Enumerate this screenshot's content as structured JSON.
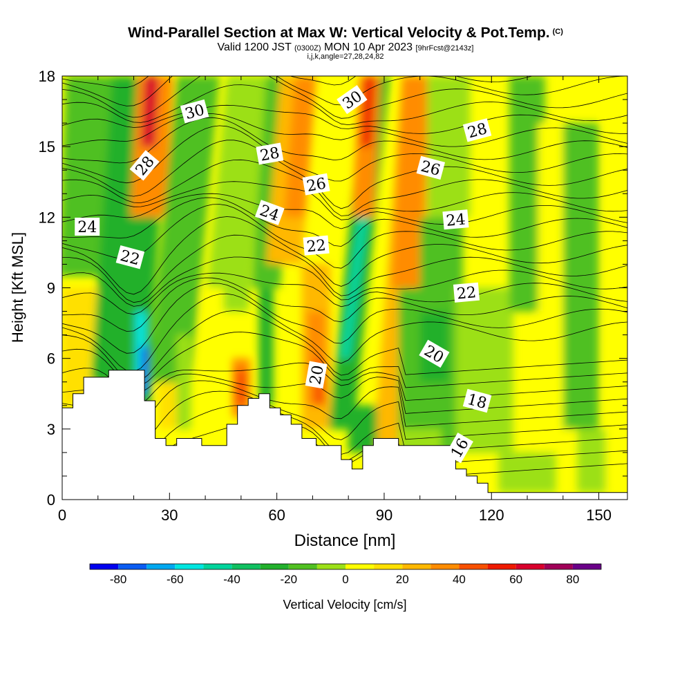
{
  "header": {
    "title": "Wind-Parallel Section at Max W: Vertical Velocity & Pot.Temp.",
    "copyright": "(C)",
    "valid_prefix": "Valid 1200 JST",
    "valid_utc": "(0300Z)",
    "valid_date": "MON 10 Apr 2023",
    "forecast": "[9hrFcst@2143z]",
    "indices": "i,j,k,angle=27,28,24,82"
  },
  "chart_data": {
    "type": "heatmap",
    "xlabel": "Distance [nm]",
    "ylabel": "Height [Kft MSL]",
    "xlim": [
      0,
      158
    ],
    "ylim": [
      0,
      18
    ],
    "x_ticks": [
      0,
      30,
      60,
      90,
      120,
      150
    ],
    "y_ticks": [
      0,
      3,
      6,
      9,
      12,
      15,
      18
    ],
    "colorbar": {
      "label": "Vertical Velocity [cm/s]",
      "ticks": [
        -80,
        -60,
        -40,
        -20,
        0,
        20,
        40,
        60,
        80
      ],
      "levels": [
        -90,
        -80,
        -70,
        -60,
        -50,
        -40,
        -30,
        -20,
        -10,
        0,
        10,
        20,
        30,
        40,
        50,
        60,
        70,
        80,
        90
      ],
      "colors": [
        "#0000ee",
        "#0a5cf2",
        "#00a8f0",
        "#00e6e0",
        "#00d49c",
        "#10c060",
        "#22b02c",
        "#50c020",
        "#9ce018",
        "#ffff00",
        "#ffe000",
        "#ffb800",
        "#ff8c00",
        "#f85000",
        "#ee1a00",
        "#d8002c",
        "#a00058",
        "#6a0088"
      ]
    },
    "contour_labels": [
      {
        "text": "30",
        "x": 37,
        "y": 16.5,
        "angle": -15
      },
      {
        "text": "30",
        "x": 81,
        "y": 17.0,
        "angle": -35
      },
      {
        "text": "28",
        "x": 23,
        "y": 14.2,
        "angle": -50
      },
      {
        "text": "28",
        "x": 58,
        "y": 14.7,
        "angle": -10
      },
      {
        "text": "28",
        "x": 116,
        "y": 15.7,
        "angle": -15
      },
      {
        "text": "26",
        "x": 71,
        "y": 13.4,
        "angle": -10
      },
      {
        "text": "26",
        "x": 103,
        "y": 14.1,
        "angle": 15
      },
      {
        "text": "24",
        "x": 7,
        "y": 11.6,
        "angle": 0
      },
      {
        "text": "24",
        "x": 58,
        "y": 12.2,
        "angle": 20
      },
      {
        "text": "24",
        "x": 110,
        "y": 11.9,
        "angle": -5
      },
      {
        "text": "22",
        "x": 19,
        "y": 10.3,
        "angle": 15
      },
      {
        "text": "22",
        "x": 71,
        "y": 10.8,
        "angle": -5
      },
      {
        "text": "22",
        "x": 113,
        "y": 8.8,
        "angle": -5
      },
      {
        "text": "20",
        "x": 71,
        "y": 5.3,
        "angle": -80
      },
      {
        "text": "20",
        "x": 104,
        "y": 6.2,
        "angle": 30
      },
      {
        "text": "18",
        "x": 116,
        "y": 4.2,
        "angle": 15
      },
      {
        "text": "16",
        "x": 111,
        "y": 2.2,
        "angle": -60
      }
    ],
    "terrain": [
      [
        0,
        3.9
      ],
      [
        3,
        3.9
      ],
      [
        3,
        4.5
      ],
      [
        6,
        4.5
      ],
      [
        6,
        5.2
      ],
      [
        13,
        5.2
      ],
      [
        13,
        5.5
      ],
      [
        23,
        5.5
      ],
      [
        23,
        4.2
      ],
      [
        26,
        4.2
      ],
      [
        26,
        2.6
      ],
      [
        29,
        2.6
      ],
      [
        29,
        2.3
      ],
      [
        32,
        2.3
      ],
      [
        32,
        2.6
      ],
      [
        39,
        2.6
      ],
      [
        39,
        2.3
      ],
      [
        46,
        2.3
      ],
      [
        46,
        3.2
      ],
      [
        49,
        3.2
      ],
      [
        49,
        4.0
      ],
      [
        52,
        4.0
      ],
      [
        52,
        4.3
      ],
      [
        55,
        4.3
      ],
      [
        55,
        4.5
      ],
      [
        58,
        4.5
      ],
      [
        58,
        3.9
      ],
      [
        61,
        3.9
      ],
      [
        61,
        3.6
      ],
      [
        64,
        3.6
      ],
      [
        64,
        3.2
      ],
      [
        67,
        3.2
      ],
      [
        67,
        2.6
      ],
      [
        71,
        2.6
      ],
      [
        71,
        2.3
      ],
      [
        78,
        2.3
      ],
      [
        78,
        1.7
      ],
      [
        81,
        1.7
      ],
      [
        81,
        1.3
      ],
      [
        84,
        1.3
      ],
      [
        84,
        2.3
      ],
      [
        87,
        2.3
      ],
      [
        87,
        2.6
      ],
      [
        94,
        2.6
      ],
      [
        94,
        2.3
      ],
      [
        110,
        2.3
      ],
      [
        110,
        1.3
      ],
      [
        113,
        1.3
      ],
      [
        113,
        1.0
      ],
      [
        116,
        1.0
      ],
      [
        116,
        0.7
      ],
      [
        119,
        0.7
      ],
      [
        119,
        0.3
      ],
      [
        158,
        0.3
      ]
    ]
  }
}
